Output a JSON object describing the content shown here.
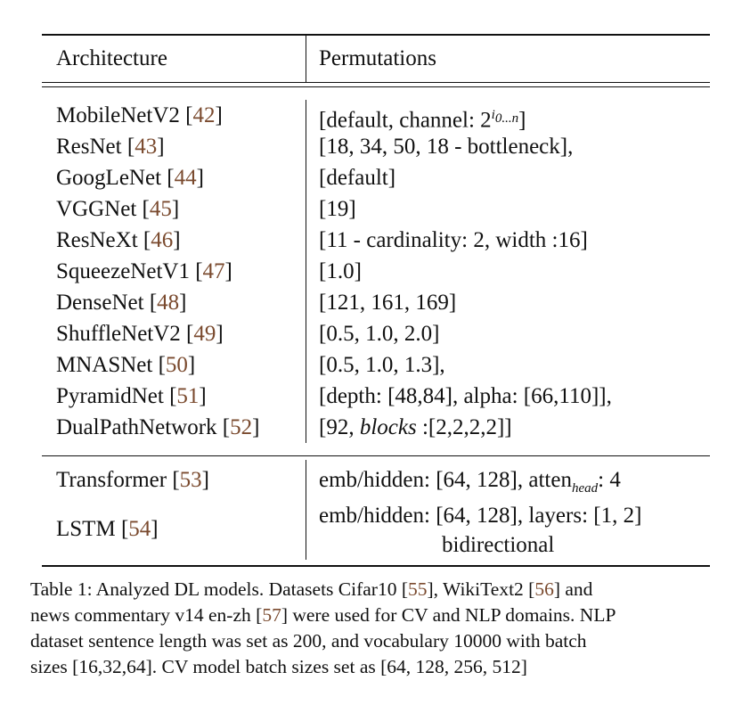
{
  "table": {
    "header": {
      "architecture": "Architecture",
      "permutations": "Permutations"
    },
    "cv_rows": [
      {
        "name": "MobileNetV2",
        "ref": "42"
      },
      {
        "name": "ResNet",
        "ref": "43",
        "perm": "[18, 34, 50, 18 - bottleneck],"
      },
      {
        "name": "GoogLeNet",
        "ref": "44",
        "perm": "[default]"
      },
      {
        "name": "VGGNet",
        "ref": "45",
        "perm": "[19]"
      },
      {
        "name": "ResNeXt",
        "ref": "46",
        "perm": "[11 - cardinality: 2, width :16]"
      },
      {
        "name": "SqueezeNetV1",
        "ref": "47",
        "perm": "[1.0]"
      },
      {
        "name": "DenseNet",
        "ref": "48",
        "perm": "[121, 161, 169]"
      },
      {
        "name": "ShuffleNetV2",
        "ref": "49",
        "perm": "[0.5, 1.0, 2.0]"
      },
      {
        "name": "MNASNet",
        "ref": "50",
        "perm": "[0.5, 1.0, 1.3],"
      },
      {
        "name": "PyramidNet",
        "ref": "51",
        "perm": "[depth: [48,84], alpha: [66,110]],"
      },
      {
        "name": "DualPathNetwork",
        "ref": "52"
      }
    ],
    "mobilenet_perm": {
      "prefix": "[default, channel: 2",
      "sup_i": "i",
      "sup_sub": "0...n",
      "suffix": "]"
    },
    "dpn_perm": {
      "prefix": "[92, ",
      "italic": "blocks",
      "suffix": " :[2,2,2,2]]"
    },
    "nlp_rows": {
      "transformer": {
        "name": "Transformer",
        "ref": "53"
      },
      "lstm": {
        "name": "LSTM",
        "ref": "54"
      },
      "transformer_perm": {
        "prefix": "emb/hidden: [64, 128], atten",
        "sub": "head",
        "suffix": ": 4"
      },
      "lstm_perm_line1": "emb/hidden: [64, 128], layers: [1, 2]",
      "lstm_perm_line2": "bidirectional"
    }
  },
  "caption": {
    "l1_a": "Table 1: Analyzed DL models. Datasets Cifar10 [",
    "l1_ref1": "55",
    "l1_b": "], WikiText2 [",
    "l1_ref2": "56",
    "l1_c": "] and",
    "l2_a": "news commentary v14 en-zh [",
    "l2_ref": "57",
    "l2_b": "] were used for CV and NLP domains. NLP",
    "l3": "dataset sentence length was set as 200, and vocabulary 10000 with batch",
    "l4": "sizes [16,32,64]. CV model batch sizes set as [64, 128, 256, 512]"
  }
}
